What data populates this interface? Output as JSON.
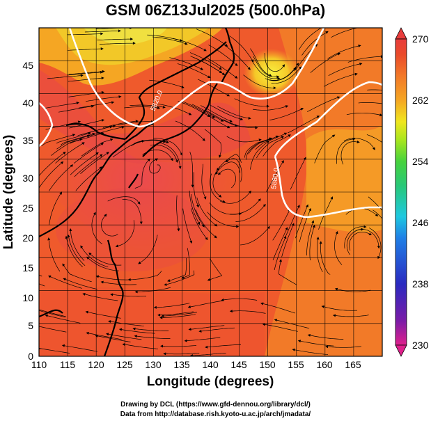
{
  "title": "GSM 06Z13Jul2025 (500.0hPa)",
  "x_axis": {
    "label": "Longitude (degrees)",
    "ticks": [
      "110",
      "115",
      "120",
      "125",
      "130",
      "135",
      "140",
      "145",
      "150",
      "155",
      "160",
      "165"
    ],
    "range": [
      110,
      170
    ]
  },
  "y_axis": {
    "label": "Latitude  (degrees)",
    "ticks": [
      "0",
      "5",
      "10",
      "15",
      "20",
      "25",
      "30",
      "35",
      "40",
      "45"
    ],
    "range": [
      0,
      50
    ]
  },
  "colorbar": {
    "labels": [
      "270",
      "262",
      "254",
      "246",
      "238",
      "230"
    ],
    "range": [
      230,
      270
    ],
    "colors": [
      "#e0208c",
      "#7a1ca8",
      "#2a2ac0",
      "#1f7fe6",
      "#1ec8e0",
      "#28c878",
      "#46d23c",
      "#a8e61e",
      "#f0e61e",
      "#f5a623",
      "#f27828",
      "#ea4a2a",
      "#e83c3c"
    ]
  },
  "contours": [
    {
      "label": "5820.0"
    },
    {
      "label": "5880.0"
    }
  ],
  "credits": {
    "line1": "Drawing by DCL (https://www.gfd-dennou.org/library/dcl/)",
    "line2": "Data from http://database.rish.kyoto-u.ac.jp/arch/jmadata/"
  }
}
